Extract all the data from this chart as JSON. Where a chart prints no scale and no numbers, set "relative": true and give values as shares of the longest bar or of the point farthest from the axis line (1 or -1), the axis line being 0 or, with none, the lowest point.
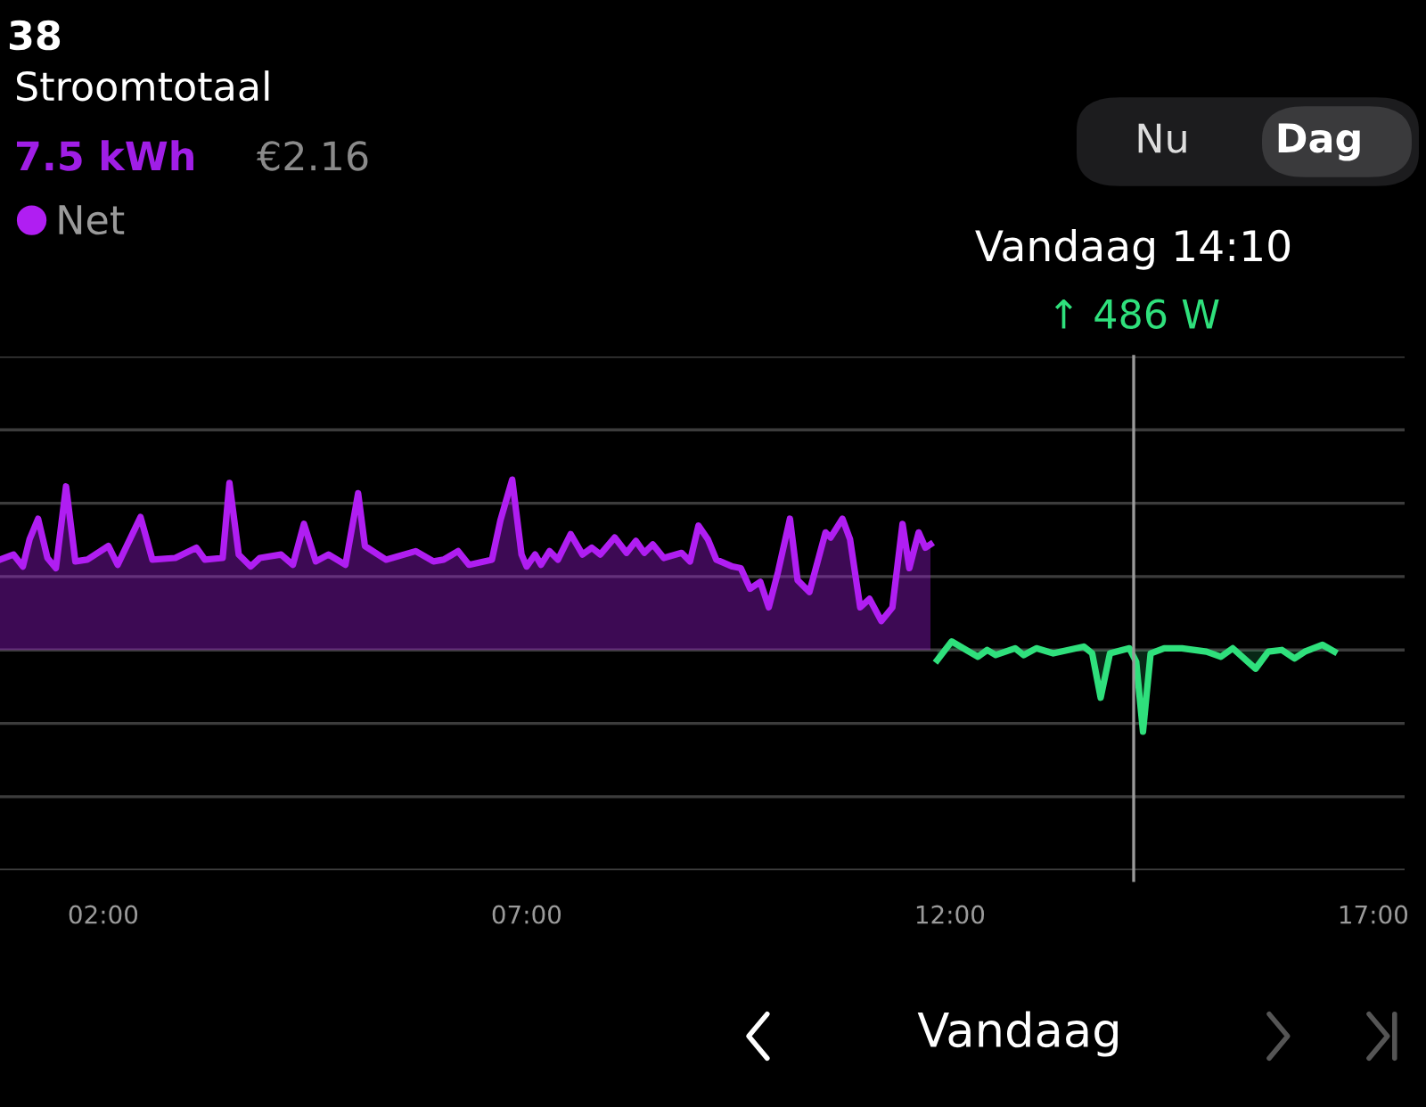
{
  "chart_data": {
    "type": "area",
    "title": "Stroomtotaal",
    "subtitle": "7.5 kWh",
    "relative": true,
    "xlim": [
      0.78,
      17.37
    ],
    "xticks": [
      {
        "value": 2,
        "label": "02:00"
      },
      {
        "value": 7,
        "label": "07:00"
      },
      {
        "value": 12,
        "label": "12:00"
      },
      {
        "value": 17,
        "label": "17:00"
      }
    ],
    "tick_labels": "x",
    "grid": "y",
    "legend": "top left",
    "marker": "none",
    "line_style": "solid",
    "ref_lines": [
      {
        "axis": "x",
        "value": 14.17,
        "label": "Vandaag 14:10",
        "color": "#9a9a9a"
      }
    ],
    "annotations": [
      "38",
      "€2.16",
      "↑ 486 W",
      "Nu",
      "Dag",
      "Vandaag"
    ],
    "series": [
      {
        "name": "Net",
        "color": "#b01ef2",
        "x": [
          0.78,
          0.94,
          1.05,
          1.13,
          1.23,
          1.34,
          1.44,
          1.56,
          1.67,
          1.81,
          2.06,
          2.17,
          2.44,
          2.58,
          2.85,
          3.1,
          3.2,
          3.41,
          3.49,
          3.6,
          3.74,
          3.85,
          4.1,
          4.24,
          4.37,
          4.51,
          4.66,
          4.86,
          5.01,
          5.09,
          5.34,
          5.69,
          5.9,
          6.02,
          6.19,
          6.32,
          6.59,
          6.69,
          6.83,
          6.94,
          7.0,
          7.1,
          7.17,
          7.27,
          7.37,
          7.52,
          7.66,
          7.77,
          7.87,
          8.04,
          8.18,
          8.29,
          8.39,
          8.49,
          8.62,
          8.83,
          8.93,
          9.03,
          9.14,
          9.24,
          9.43,
          9.53,
          9.64,
          9.76,
          9.86,
          9.97,
          10.11,
          10.2,
          10.34,
          10.53,
          10.59,
          10.73,
          10.82,
          10.94,
          11.05,
          11.19,
          11.32,
          11.44,
          11.52,
          11.63,
          11.71,
          11.77
        ],
        "values": [
          0.53,
          0.56,
          0.49,
          0.65,
          0.77,
          0.54,
          0.48,
          0.96,
          0.52,
          0.53,
          0.61,
          0.5,
          0.78,
          0.53,
          0.54,
          0.6,
          0.53,
          0.54,
          0.98,
          0.56,
          0.49,
          0.54,
          0.56,
          0.5,
          0.74,
          0.52,
          0.56,
          0.5,
          0.92,
          0.61,
          0.53,
          0.58,
          0.52,
          0.53,
          0.58,
          0.5,
          0.53,
          0.76,
          1.0,
          0.56,
          0.49,
          0.56,
          0.5,
          0.58,
          0.53,
          0.68,
          0.56,
          0.6,
          0.56,
          0.66,
          0.57,
          0.64,
          0.57,
          0.62,
          0.54,
          0.57,
          0.52,
          0.73,
          0.65,
          0.53,
          0.49,
          0.48,
          0.36,
          0.4,
          0.25,
          0.46,
          0.77,
          0.41,
          0.34,
          0.69,
          0.66,
          0.77,
          0.65,
          0.25,
          0.3,
          0.17,
          0.25,
          0.74,
          0.48,
          0.69,
          0.6,
          0.62
        ]
      },
      {
        "color": "#2fe07c",
        "x": [
          11.85,
          12.02,
          12.19,
          12.33,
          12.44,
          12.54,
          12.77,
          12.87,
          13.02,
          13.22,
          13.58,
          13.68,
          13.78,
          13.89,
          14.12,
          14.2,
          14.28,
          14.37,
          14.53,
          14.74,
          15.03,
          15.2,
          15.34,
          15.61,
          15.76,
          15.92,
          16.07,
          16.19,
          16.4,
          16.54
        ],
        "values": [
          -0.06,
          0.05,
          0.0,
          -0.04,
          0.0,
          -0.03,
          0.01,
          -0.03,
          0.01,
          -0.02,
          0.02,
          -0.02,
          -0.28,
          -0.02,
          0.01,
          -0.07,
          -0.48,
          -0.02,
          0.01,
          0.01,
          -0.01,
          -0.04,
          0.01,
          -0.11,
          -0.01,
          0.0,
          -0.05,
          -0.01,
          0.03,
          -0.01
        ]
      }
    ]
  }
}
